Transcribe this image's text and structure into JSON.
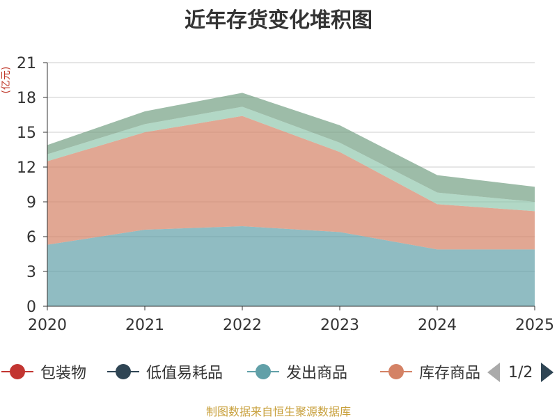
{
  "chart_data": {
    "type": "area",
    "stacked": true,
    "title": "近年存货变化堆积图",
    "ylabel": "(亿元)",
    "xlabel": "",
    "x": [
      "2020",
      "2021",
      "2022",
      "2023",
      "2024",
      "2025"
    ],
    "ylim": [
      0,
      21
    ],
    "yticks": [
      0,
      3,
      6,
      9,
      12,
      15,
      18,
      21
    ],
    "series": [
      {
        "name": "包装物",
        "color": "#c23531",
        "values": [
          0,
          0,
          0,
          0,
          0,
          0
        ]
      },
      {
        "name": "低值易耗品",
        "color": "#2f4554",
        "values": [
          0,
          0,
          0,
          0,
          0,
          0
        ]
      },
      {
        "name": "发出商品",
        "color": "#61a0a8",
        "values": [
          5.3,
          6.6,
          6.9,
          6.4,
          4.9,
          4.9
        ]
      },
      {
        "name": "库存商品",
        "color": "#d48265",
        "values": [
          7.2,
          8.4,
          9.5,
          6.9,
          3.9,
          3.3
        ]
      },
      {
        "name": "",
        "color": "#91c7ae",
        "values": [
          0.6,
          0.7,
          0.8,
          0.8,
          1.0,
          0.8
        ]
      },
      {
        "name": "",
        "color": "#749f83",
        "values": [
          0.8,
          1.1,
          1.2,
          1.5,
          1.5,
          1.3
        ]
      }
    ],
    "legend": {
      "items": [
        "包装物",
        "低值易耗品",
        "发出商品",
        "库存商品"
      ],
      "page": "1/2",
      "position": "bottom"
    }
  },
  "source": "制图数据来自恒生聚源数据库"
}
